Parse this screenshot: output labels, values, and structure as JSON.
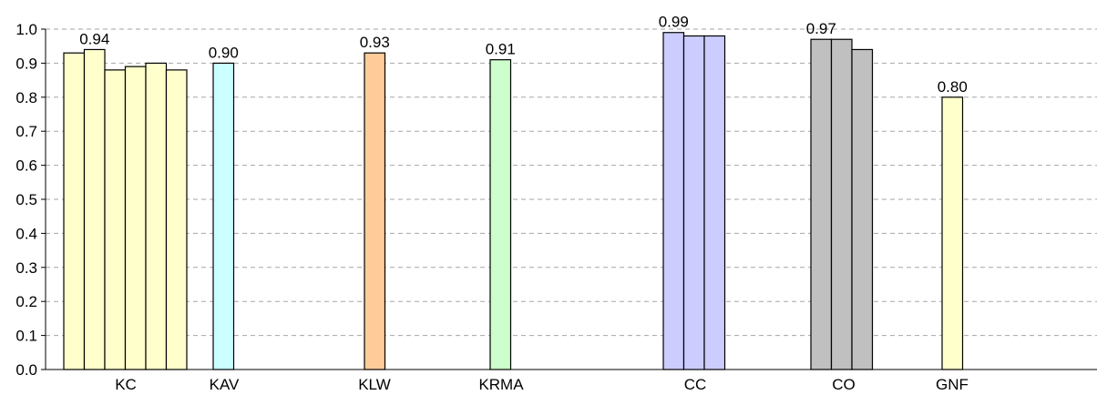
{
  "chart_data": {
    "type": "bar",
    "title": "",
    "xlabel": "",
    "ylabel": "",
    "ylim": [
      0,
      1.0
    ],
    "yticks": [
      "0.0",
      "0.1",
      "0.2",
      "0.3",
      "0.4",
      "0.5",
      "0.6",
      "0.7",
      "0.8",
      "0.9",
      "1.0"
    ],
    "grid": "horizontal-dashed",
    "categories": [
      "KC",
      "KAV",
      "KLW",
      "KRMA",
      "CC",
      "CO",
      "GNF"
    ],
    "groups": [
      {
        "category": "KC",
        "color": "#FFFFCC",
        "values": [
          0.93,
          0.94,
          0.88,
          0.89,
          0.9,
          0.88
        ],
        "label": "0.94",
        "label_bar": 1
      },
      {
        "category": "KAV",
        "color": "#CCFFFF",
        "values": [
          0.9
        ],
        "label": "0.90",
        "label_bar": 0
      },
      {
        "category": "KLW",
        "color": "#FFCC99",
        "values": [
          0.93
        ],
        "label": "0.93",
        "label_bar": 0
      },
      {
        "category": "KRMA",
        "color": "#CCFFCC",
        "values": [
          0.91
        ],
        "label": "0.91",
        "label_bar": 0
      },
      {
        "category": "CC",
        "color": "#CCCCFF",
        "values": [
          0.99,
          0.98,
          0.98
        ],
        "label": "0.99",
        "label_bar": 0
      },
      {
        "category": "CO",
        "color": "#C0C0C0",
        "values": [
          0.97,
          0.97,
          0.94
        ],
        "label": "0.97",
        "label_bar": 0
      },
      {
        "category": "GNF",
        "color": "#FFFFCC",
        "values": [
          0.8
        ],
        "label": "0.80",
        "label_bar": 0
      }
    ]
  }
}
